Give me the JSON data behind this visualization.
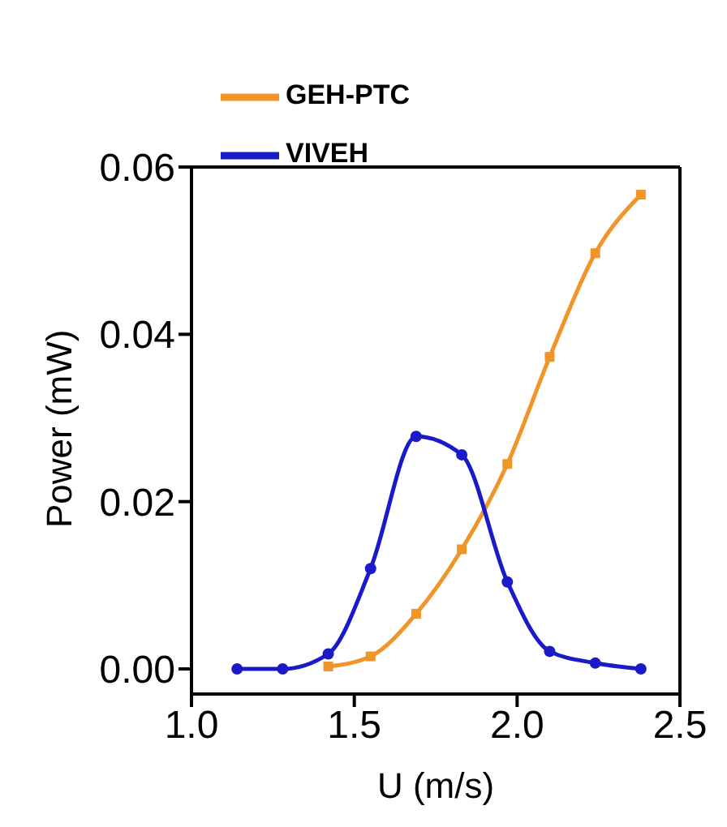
{
  "chart_data": {
    "type": "line",
    "xlabel": "U (m/s)",
    "ylabel": "Power (mW)",
    "xlim": [
      1.0,
      2.5
    ],
    "xticks": [
      {
        "value": 1.0,
        "label": "1.0"
      },
      {
        "value": 1.5,
        "label": "1.5"
      },
      {
        "value": 2.0,
        "label": "2.0"
      },
      {
        "value": 2.5,
        "label": "2.5"
      }
    ],
    "ylim": [
      -0.003,
      0.06
    ],
    "yticks": [
      {
        "value": 0,
        "label": "0.00"
      },
      {
        "value": 0.02,
        "label": "0.02"
      },
      {
        "value": 0.04,
        "label": "0.04"
      },
      {
        "value": 0.06,
        "label": "0.06"
      }
    ],
    "grid": false,
    "legend": "top left",
    "series": [
      {
        "name": "GEH-PTC",
        "color": "#f0952a",
        "marker": "square",
        "x": [
          1.42,
          1.55,
          1.69,
          1.83,
          1.97,
          2.1,
          2.24,
          2.38
        ],
        "values": [
          0.0003,
          0.0015,
          0.0066,
          0.0143,
          0.0245,
          0.0373,
          0.0497,
          0.0567
        ]
      },
      {
        "name": "VIVEH",
        "color": "#1a1ac8",
        "marker": "circle",
        "x": [
          1.14,
          1.28,
          1.42,
          1.55,
          1.69,
          1.83,
          1.97,
          2.1,
          2.24,
          2.38
        ],
        "values": [
          0,
          0,
          0.0018,
          0.012,
          0.0278,
          0.0256,
          0.0104,
          0.0021,
          0.0007,
          0
        ]
      }
    ]
  }
}
